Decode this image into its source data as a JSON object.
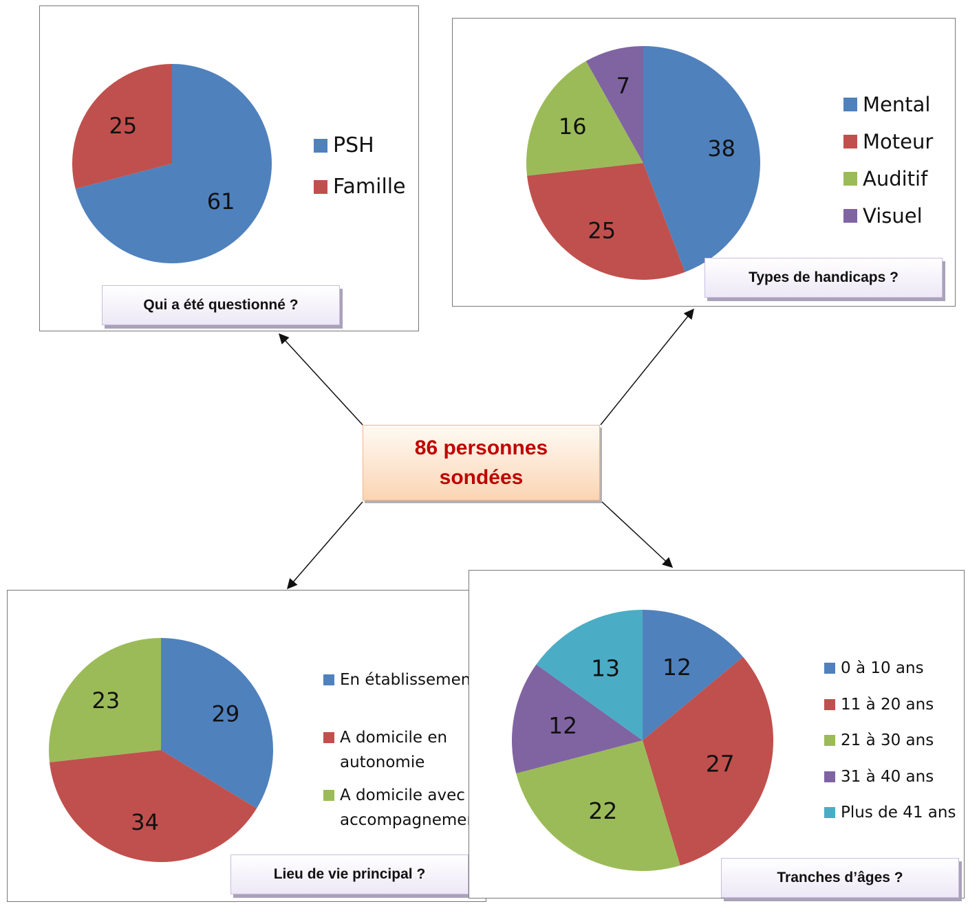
{
  "center": {
    "line1": "86 personnes",
    "line2": "sondées"
  },
  "colors": {
    "blue": "#4f81bd",
    "red": "#c0504d",
    "green": "#9bbb59",
    "purple": "#8064a2",
    "cyan": "#4bacc6"
  },
  "chart_data": [
    {
      "id": "questioned",
      "type": "pie",
      "title": "Qui a été questionné ?",
      "categories": [
        "PSH",
        "Famille"
      ],
      "values": [
        61,
        25
      ],
      "colors": [
        "#4f81bd",
        "#c0504d"
      ],
      "legend_position": "right"
    },
    {
      "id": "handicaps",
      "type": "pie",
      "title": "Types de handicaps ?",
      "categories": [
        "Mental",
        "Moteur",
        "Auditif",
        "Visuel"
      ],
      "values": [
        38,
        25,
        16,
        7
      ],
      "colors": [
        "#4f81bd",
        "#c0504d",
        "#9bbb59",
        "#8064a2"
      ],
      "legend_position": "right"
    },
    {
      "id": "lieu",
      "type": "pie",
      "title": "Lieu de vie principal ?",
      "categories": [
        "En établissement",
        "A domicile en autonomie",
        "A domicile avec accompagnement"
      ],
      "values": [
        29,
        34,
        23
      ],
      "colors": [
        "#4f81bd",
        "#c0504d",
        "#9bbb59"
      ],
      "legend_position": "right"
    },
    {
      "id": "ages",
      "type": "pie",
      "title": "Tranches d’âges ?",
      "categories": [
        "0 à 10 ans",
        "11 à 20 ans",
        "21 à 30 ans",
        "31 à 40 ans",
        "Plus de 41 ans"
      ],
      "values": [
        12,
        27,
        22,
        12,
        13
      ],
      "colors": [
        "#4f81bd",
        "#c0504d",
        "#9bbb59",
        "#8064a2",
        "#4bacc6"
      ],
      "legend_position": "right"
    }
  ]
}
